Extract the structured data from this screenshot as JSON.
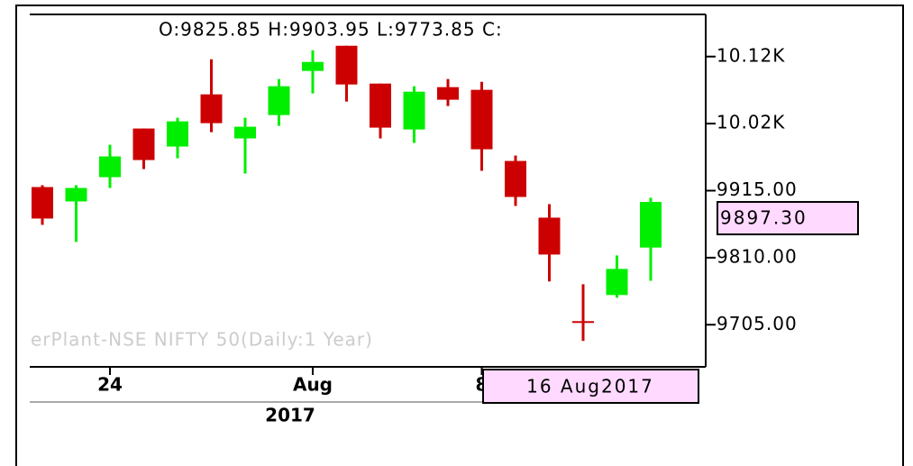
{
  "chart_data": {
    "type": "candlestick",
    "header": "O:9825.85  H:9903.95  L:9773.85  C:",
    "watermark": "erPlant-NSE NIFTY 50(Daily:1 Year)",
    "categories": [
      null,
      null,
      "24",
      null,
      null,
      null,
      null,
      null,
      "Aug",
      null,
      null,
      null,
      null,
      "8",
      null,
      null,
      null,
      null,
      null
    ],
    "year_label": "2017",
    "crosshair_label": "16 Aug2017",
    "last_price": {
      "value": 9897.3,
      "label": "9897.30"
    },
    "up_color": "#00ee00",
    "down_color": "#cc0000",
    "open": [
      9920.6,
      9898.1,
      9936.1,
      10012.3,
      9984.1,
      10065.8,
      9996.8,
      10033.4,
      10102.5,
      10141.9,
      10082.7,
      10010.8,
      10077.1,
      10072.9,
      9961.5,
      9872.7,
      9710.6,
      9751.5,
      9825.85
    ],
    "high": [
      9923.5,
      9923.5,
      9986.9,
      10012.3,
      10029.2,
      10120.8,
      10029.2,
      10089.8,
      10134.9,
      10141.9,
      10082.7,
      10078.5,
      10089.8,
      10085.5,
      9970.0,
      9893.9,
      9768.4,
      9813.5,
      9903.95
    ],
    "low": [
      9861.4,
      9834.7,
      9919.2,
      9948.8,
      9965.7,
      10006.6,
      9941.8,
      10016.5,
      10067.2,
      10054.5,
      9996.8,
      9989.7,
      10047.5,
      9946.0,
      9891.0,
      9772.7,
      9679.6,
      9747.3,
      9773.85
    ],
    "close": [
      9871.3,
      9919.2,
      9968.6,
      9962.9,
      10023.5,
      10020.7,
      10015.1,
      10078.5,
      10116.6,
      10081.3,
      10013.7,
      10070.0,
      10057.4,
      9979.8,
      9905.1,
      9814.9,
      9707.8,
      9792.4,
      9897.3
    ],
    "ylim": [
      9639,
      10191
    ],
    "yticks": [
      {
        "value": 10125,
        "label": "10.12K"
      },
      {
        "value": 10020,
        "label": "10.02K"
      },
      {
        "value": 9915,
        "label": "9915.00"
      },
      {
        "value": 9810,
        "label": "9810.00"
      },
      {
        "value": 9705,
        "label": "9705.00"
      }
    ]
  }
}
